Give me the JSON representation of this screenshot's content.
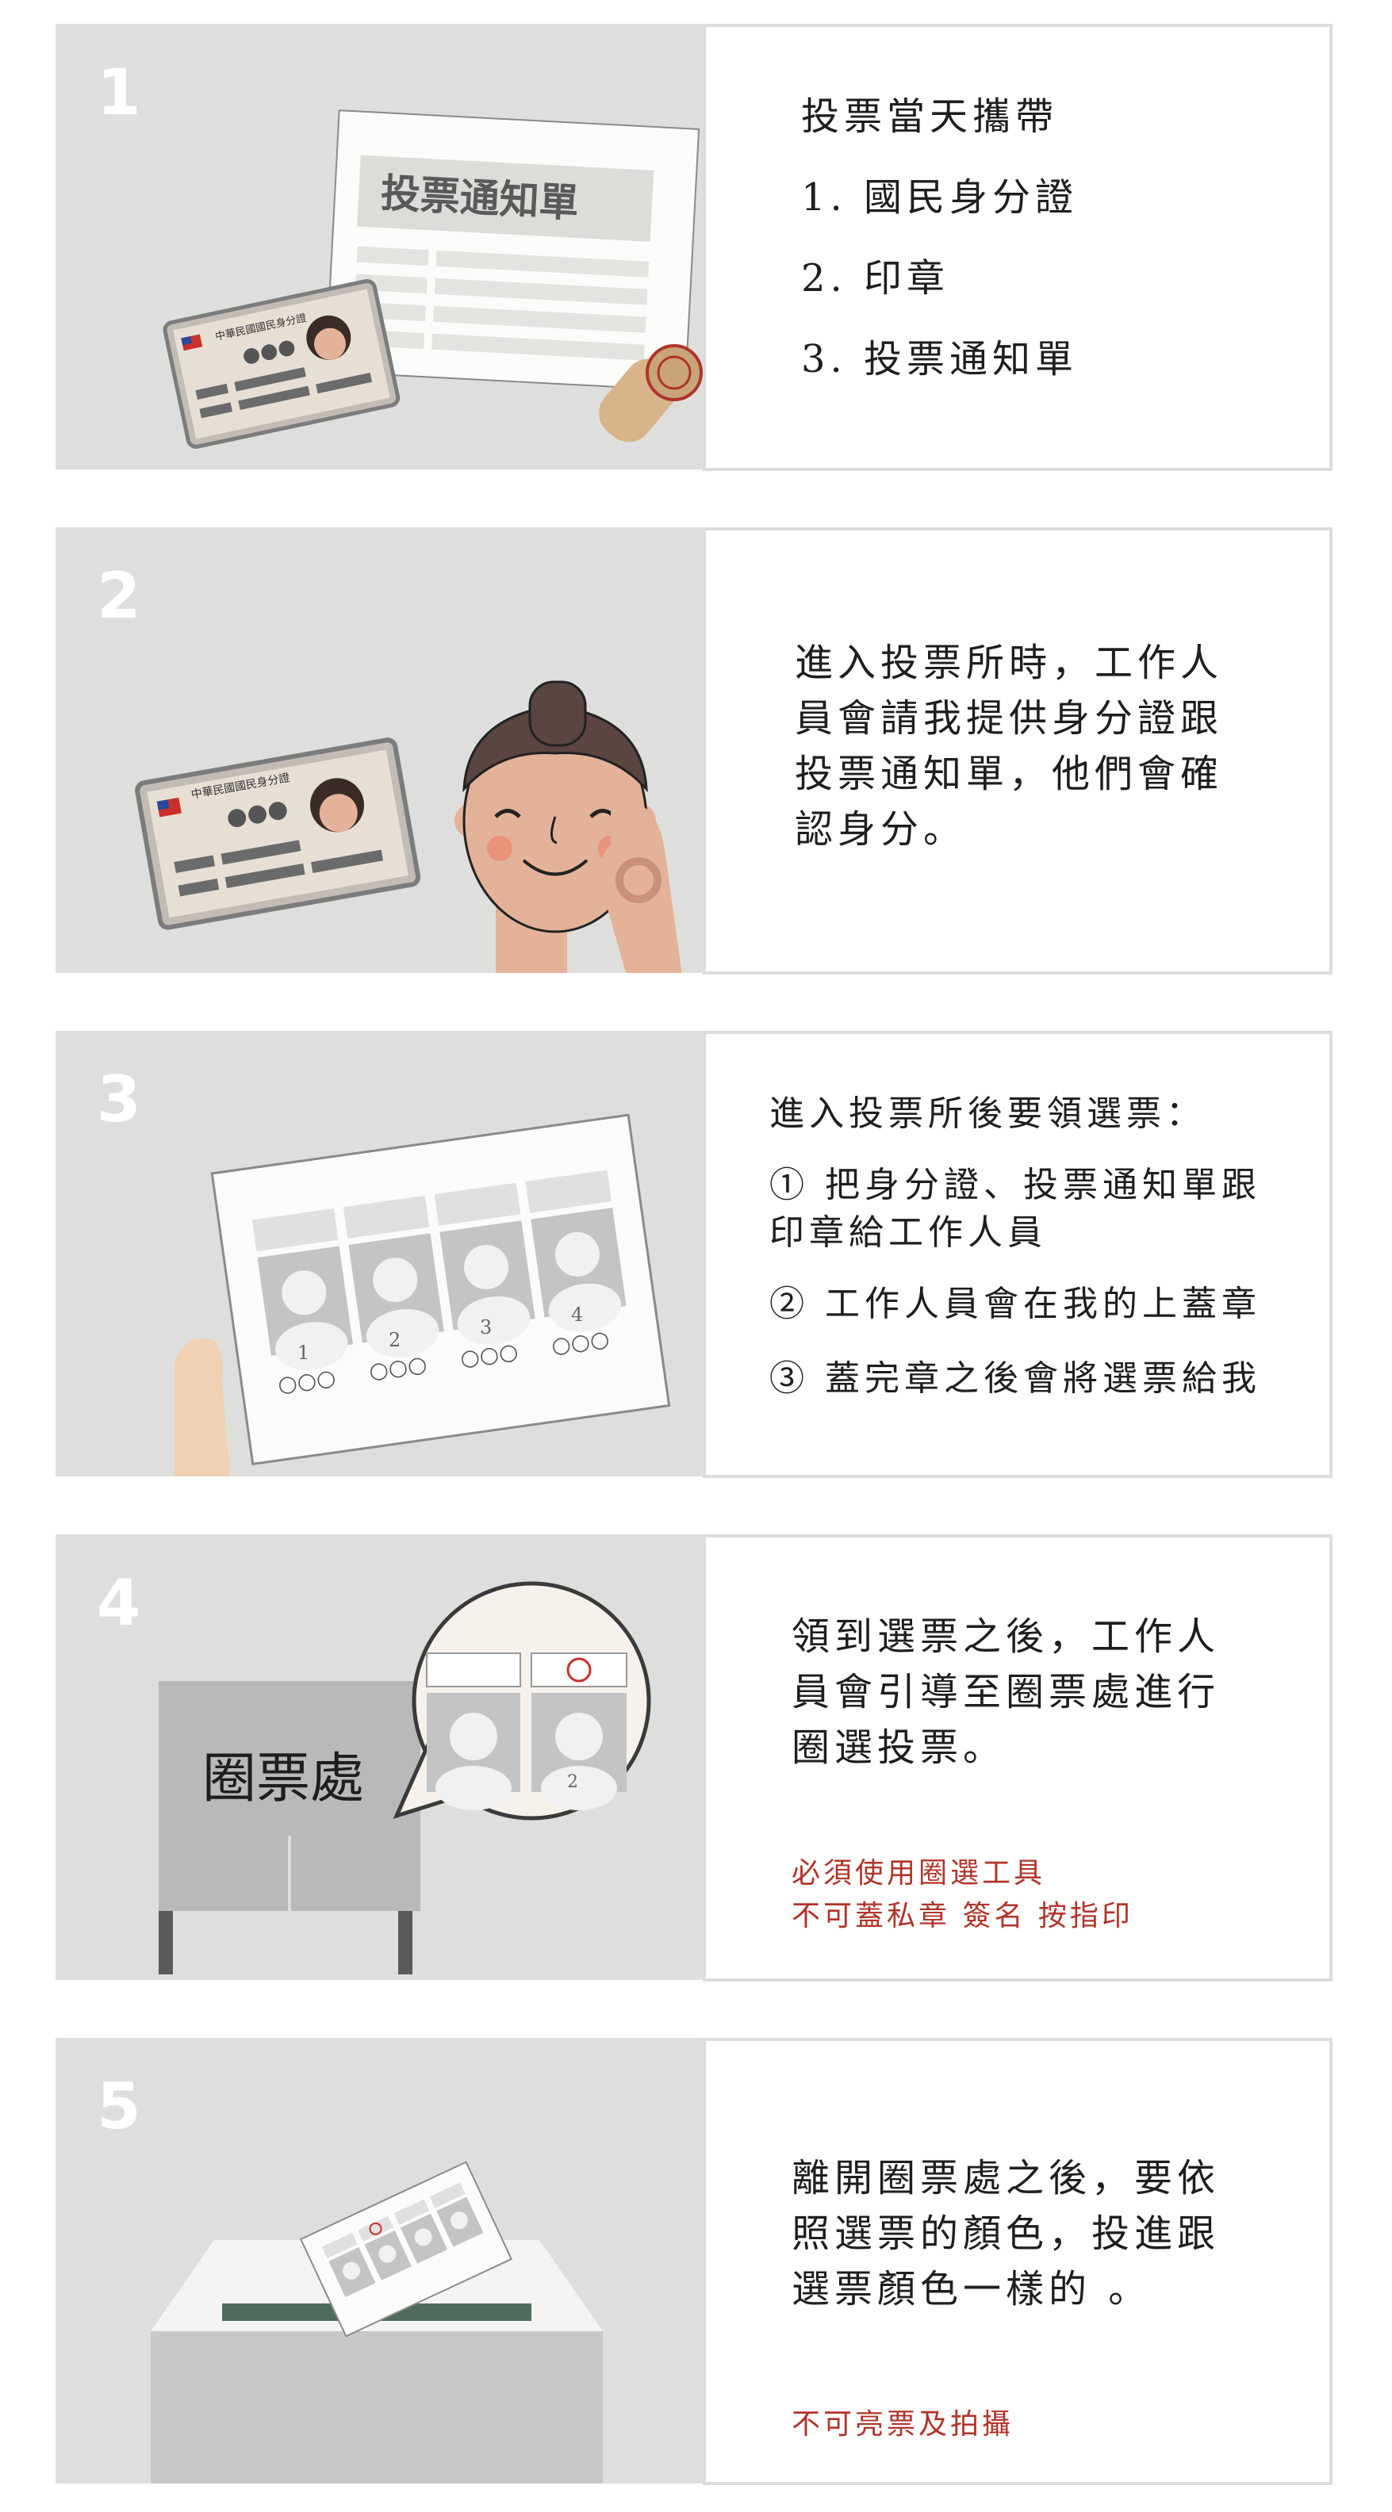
{
  "steps": [
    {
      "number": "1",
      "illustration": {
        "notice_title": "投票通知單",
        "id_card_title": "中華民國國民身分證",
        "id_card_dots": "●●●"
      },
      "lines": [
        "投票當天攜帶",
        "1. 國民身分證",
        "2. 印章",
        "3. 投票通知單"
      ]
    },
    {
      "number": "2",
      "illustration": {
        "id_card_title": "中華民國國民身分證",
        "id_card_dots": "●●●"
      },
      "lines": [
        "進入投票所時，工作人",
        "員會請我提供身分證跟",
        "投票通知單，他們會確",
        "認身分。"
      ]
    },
    {
      "number": "3",
      "illustration": {
        "ballot_numbers": [
          "1",
          "2",
          "3",
          "4"
        ],
        "ballot_names": [
          "○○○",
          "○○○",
          "○○○",
          "○○○"
        ]
      },
      "lines": [
        "進入投票所後要領選票：",
        "① 把身分證、投票通知單跟",
        "印章給工作人員",
        "② 工作人員會在我的上蓋章",
        "③ 蓋完章之後會將選票給我"
      ]
    },
    {
      "number": "4",
      "illustration": {
        "booth_label": "圈票處",
        "bubble_number": "2"
      },
      "lines": [
        "領到選票之後，工作人",
        "員會引導至圈票處進行",
        "圈選投票。"
      ],
      "warning_lines": [
        "必須使用圈選工具",
        "不可蓋私章 簽名 按指印"
      ]
    },
    {
      "number": "5",
      "illustration": {},
      "lines": [
        "離開圈票處之後，要依",
        "照選票的顏色，投進跟",
        "選票顏色一樣的 。"
      ],
      "warning_lines": [
        "不可亮票及拍攝"
      ]
    }
  ],
  "colors": {
    "panel_bg": "#dedfdc",
    "card_border": "#dcdddb",
    "warning_text": "#b0342a"
  }
}
